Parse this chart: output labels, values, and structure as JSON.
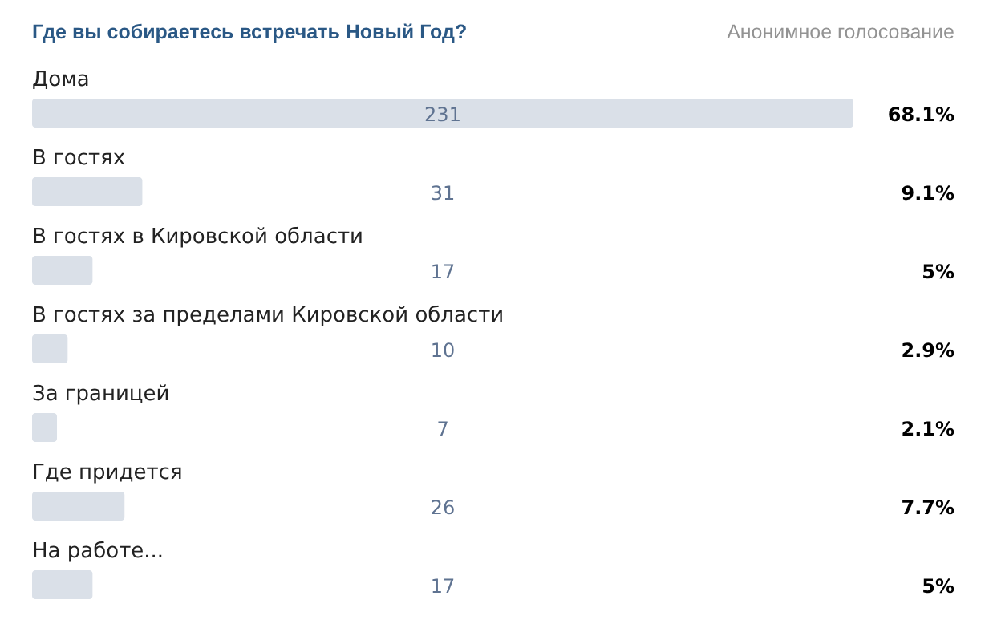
{
  "chart_data": {
    "type": "bar",
    "orientation": "horizontal",
    "title": "Где вы собираетесь встречать Новый Год?",
    "subtitle": "Анонимное голосование",
    "categories": [
      "Дома",
      "В гостях",
      "В гостях в Кировской области",
      "В гостях за пределами Кировской области",
      "За границей",
      "Где придется",
      "На работе..."
    ],
    "values": [
      231,
      31,
      17,
      10,
      7,
      26,
      17
    ],
    "color": "#dae0e8",
    "xlim": [
      0,
      231
    ],
    "data_labels": true,
    "annotations": [
      "68.1%",
      "9.1%",
      "5%",
      "2.9%",
      "2.1%",
      "7.7%",
      "5%"
    ]
  }
}
